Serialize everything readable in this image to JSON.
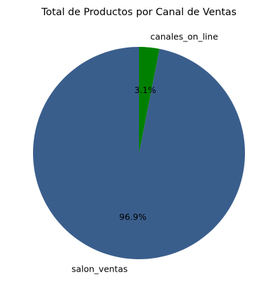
{
  "chart_data": {
    "type": "pie",
    "title": "Total de Productos por Canal de Ventas",
    "slices": [
      {
        "label": "canales_on_line",
        "value": 3.1,
        "percent_label": "3.1%",
        "color": "#008000"
      },
      {
        "label": "salon_ventas",
        "value": 96.9,
        "percent_label": "96.9%",
        "color": "#3a5e8c"
      }
    ],
    "start_angle_deg": 90,
    "direction": "counterclockwise_from_top_drawn_clockwise_visual"
  }
}
